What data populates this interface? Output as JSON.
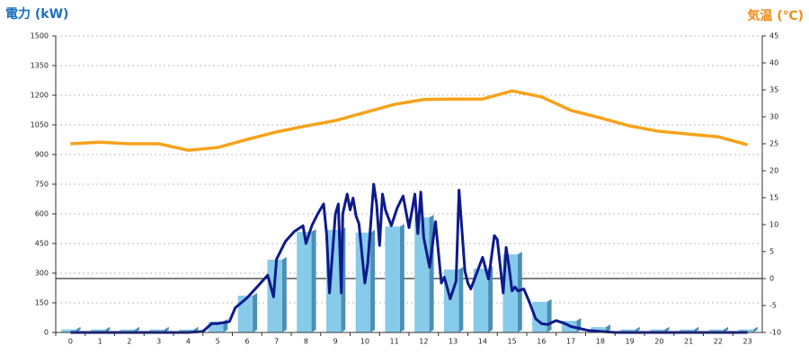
{
  "chart_data": {
    "type": "combo",
    "ylabel": "電力 (kW)",
    "y2label": "気温 (℃)",
    "ylabel_color": "#1b6fc0",
    "y2label_color": "#f08c1a",
    "categories": [
      "0",
      "1",
      "2",
      "3",
      "4",
      "5",
      "6",
      "7",
      "8",
      "9",
      "10",
      "11",
      "12",
      "13",
      "14",
      "15",
      "16",
      "17",
      "18",
      "19",
      "20",
      "21",
      "22",
      "23"
    ],
    "ylim": [
      0,
      1500
    ],
    "yticks": [
      0,
      150,
      300,
      450,
      600,
      750,
      900,
      1050,
      1200,
      1350,
      1500
    ],
    "y2lim": [
      -10,
      45
    ],
    "y2ticks": [
      -10,
      -5,
      0,
      5,
      10,
      15,
      20,
      25,
      30,
      35,
      40,
      45
    ],
    "grid": true,
    "series": [
      {
        "type": "bar",
        "color": "#87cbea",
        "values": [
          15,
          15,
          15,
          15,
          15,
          55,
          186,
          368,
          509,
          518,
          505,
          536,
          582,
          318,
          323,
          395,
          155,
          59,
          27,
          15,
          15,
          15,
          15,
          15
        ]
      },
      {
        "type": "line",
        "axis": "y2",
        "color": "#f7a21b",
        "values": [
          25,
          25.3,
          25,
          25,
          23.8,
          24.3,
          25.8,
          27.2,
          28.3,
          29.3,
          30.8,
          32.3,
          33.2,
          33.3,
          33.3,
          34.8,
          33.7,
          31.2,
          29.8,
          28.3,
          27.3,
          26.8,
          26.3,
          24.8
        ]
      },
      {
        "type": "detail",
        "color": "#0d1a8c",
        "x": [
          0,
          1,
          2,
          3,
          4,
          4.5,
          4.8,
          5,
          5.4,
          5.6,
          6,
          6.4,
          6.7,
          6.9,
          7,
          7.3,
          7.6,
          7.9,
          8,
          8.2,
          8.4,
          8.6,
          8.7,
          8.8,
          9,
          9.1,
          9.2,
          9.25,
          9.4,
          9.5,
          9.6,
          9.7,
          9.8,
          10,
          10.1,
          10.3,
          10.4,
          10.5,
          10.6,
          10.7,
          10.9,
          11.1,
          11.3,
          11.5,
          11.7,
          11.8,
          11.9,
          12,
          12.2,
          12.4,
          12.6,
          12.7,
          12.9,
          13.1,
          13.2,
          13.4,
          13.5,
          13.6,
          13.8,
          14,
          14.2,
          14.4,
          14.5,
          14.7,
          14.8,
          14.9,
          15,
          15.1,
          15.2,
          15.4,
          15.6,
          15.8,
          16,
          16.2,
          16.5,
          16.8,
          17,
          17.3,
          17.6,
          18,
          18.5,
          19,
          20,
          21,
          22,
          23
        ],
        "values": [
          0,
          0,
          0,
          0,
          0,
          5,
          45,
          45,
          55,
          125,
          175,
          240,
          290,
          180,
          370,
          460,
          510,
          540,
          450,
          540,
          600,
          650,
          500,
          200,
          600,
          650,
          200,
          600,
          700,
          620,
          680,
          590,
          550,
          250,
          350,
          750,
          650,
          440,
          700,
          620,
          540,
          630,
          690,
          530,
          700,
          500,
          710,
          480,
          330,
          560,
          250,
          280,
          170,
          260,
          720,
          310,
          250,
          220,
          300,
          380,
          270,
          490,
          470,
          200,
          430,
          330,
          210,
          230,
          210,
          220,
          150,
          70,
          45,
          40,
          60,
          45,
          30,
          20,
          10,
          5,
          0,
          0,
          0,
          0,
          0,
          0
        ]
      }
    ]
  }
}
